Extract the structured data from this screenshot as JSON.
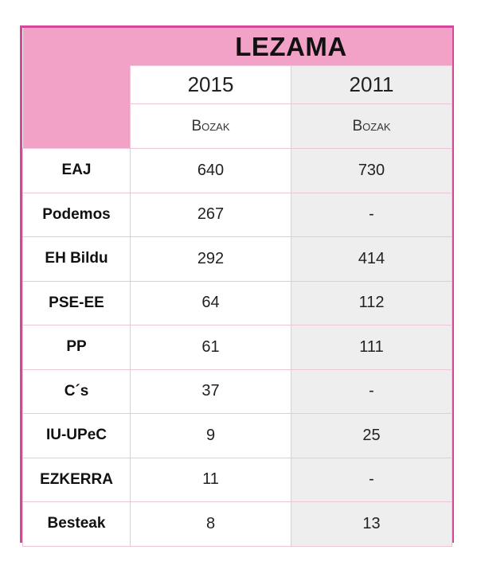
{
  "table": {
    "title": "LEZAMA",
    "years": [
      "2015",
      "2011"
    ],
    "column_label": "Bozak",
    "rows": [
      {
        "party": "EAJ",
        "v2015": "640",
        "v2011": "730"
      },
      {
        "party": "Podemos",
        "v2015": "267",
        "v2011": "-"
      },
      {
        "party": "EH Bildu",
        "v2015": "292",
        "v2011": "414"
      },
      {
        "party": "PSE-EE",
        "v2015": "64",
        "v2011": "112"
      },
      {
        "party": "PP",
        "v2015": "61",
        "v2011": "111"
      },
      {
        "party": "C´s",
        "v2015": "37",
        "v2011": "-"
      },
      {
        "party": "IU-UPeC",
        "v2015": "9",
        "v2011": "25"
      },
      {
        "party": "EZKERRA",
        "v2015": "11",
        "v2011": "-"
      },
      {
        "party": "Besteak",
        "v2015": "8",
        "v2011": "13"
      }
    ]
  },
  "colors": {
    "border": "#d4479a",
    "header_fill": "#f2a2c6",
    "alt_column": "#eeeeee"
  }
}
